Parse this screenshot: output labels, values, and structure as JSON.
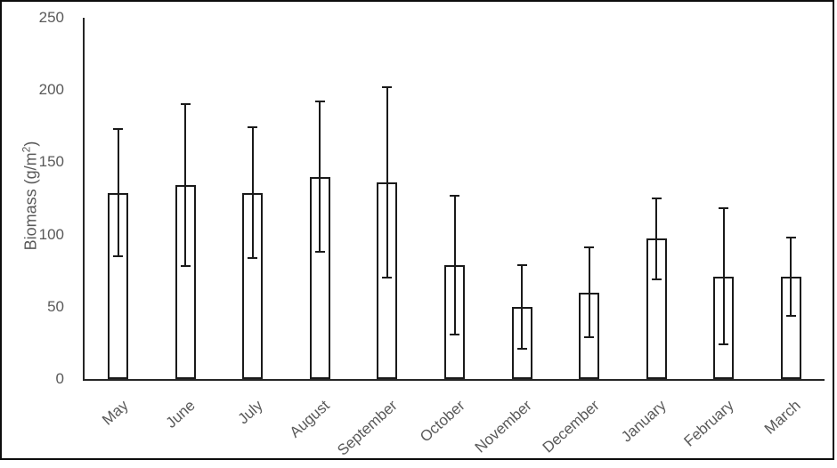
{
  "figure": {
    "background": "#ffffff",
    "frame_color": "#0d0d0d"
  },
  "chart_data": {
    "type": "bar",
    "title": "",
    "ylabel_prefix": "Biomass (g/m",
    "ylabel_sup": "2",
    "ylabel_suffix": ")",
    "xlabel": "",
    "categories": [
      "May",
      "June",
      "July",
      "August",
      "September",
      "October",
      "November",
      "December",
      "January",
      "February",
      "March"
    ],
    "series": [
      {
        "name": "Biomass",
        "values": [
          129,
          134,
          129,
          140,
          136,
          79,
          50,
          60,
          97,
          71,
          71
        ],
        "error_plus": [
          44,
          56,
          45,
          52,
          66,
          48,
          29,
          31,
          28,
          47,
          27
        ],
        "error_minus": [
          44,
          56,
          45,
          52,
          66,
          48,
          29,
          31,
          28,
          47,
          27
        ]
      }
    ],
    "ylim": [
      0,
      250
    ],
    "yticks": [
      0,
      50,
      100,
      150,
      200,
      250
    ],
    "grid": false,
    "legend": false,
    "bar_fill": "#ffffff",
    "bar_stroke": "#1a1a1a",
    "error_color": "#1a1a1a",
    "axis_color": "#262626",
    "tick_label_color": "#595959",
    "x_label_rotation_deg": -42
  }
}
